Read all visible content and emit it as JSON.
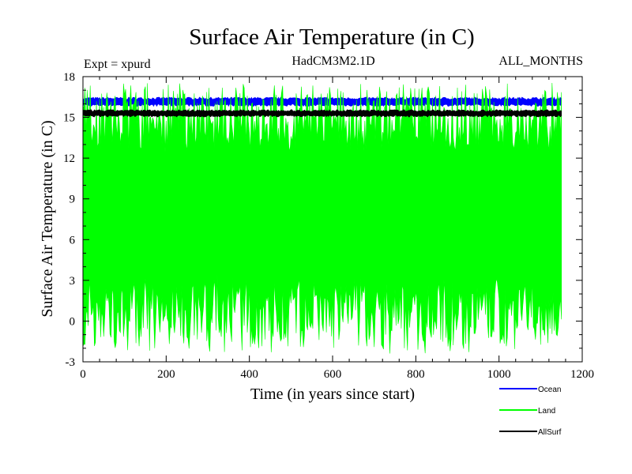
{
  "chart_data": {
    "type": "line",
    "title": "Surface Air Temperature (in C)",
    "subtitle_left": "Expt = xpurd",
    "subtitle_center": "HadCM3M2.1D",
    "subtitle_right": "ALL_MONTHS",
    "xlabel": "Time (in years since start)",
    "ylabel": "Surface Air Temperature (in C)",
    "xlim": [
      0,
      1200
    ],
    "ylim": [
      -3,
      18
    ],
    "xticks": [
      0,
      200,
      400,
      600,
      800,
      1000,
      1200
    ],
    "yticks": [
      -3,
      0,
      3,
      6,
      9,
      12,
      15,
      18
    ],
    "x_end": 1150,
    "legend_position": "bottom-right",
    "series": [
      {
        "name": "Ocean",
        "color": "#0000ff",
        "band_low": 15.9,
        "band_high": 16.4,
        "mean": 16.15
      },
      {
        "name": "Land",
        "color": "#00ff00",
        "band_low": 0.4,
        "band_high": 15.0,
        "mean": 7.7
      },
      {
        "name": "AllSurf",
        "color": "#000000",
        "band_low": 15.1,
        "band_high": 15.5,
        "mean": 15.3
      }
    ]
  }
}
